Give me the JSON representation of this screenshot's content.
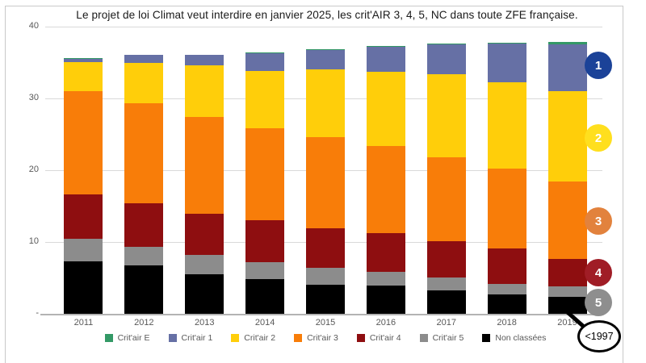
{
  "title": "Le projet de loi Climat veut interdire en janvier 2025, les crit'AIR 3, 4, 5, NC dans toute ZFE française.",
  "chart_data": {
    "type": "bar",
    "subtype": "stacked",
    "title": "Le projet de loi Climat veut interdire en janvier 2025, les crit'AIR 3, 4, 5, NC dans toute ZFE française.",
    "categories": [
      "2011",
      "2012",
      "2013",
      "2014",
      "2015",
      "2016",
      "2017",
      "2018",
      "2019"
    ],
    "series": [
      {
        "name": "Crit'air E",
        "color": "#339966",
        "values": [
          0.05,
          0.05,
          0.05,
          0.1,
          0.1,
          0.1,
          0.1,
          0.15,
          0.3
        ]
      },
      {
        "name": "Crit'air 1",
        "color": "#6670A5",
        "values": [
          0.5,
          1.1,
          1.5,
          2.4,
          2.7,
          3.4,
          4.2,
          5.4,
          6.5
        ]
      },
      {
        "name": "Crit'air 2",
        "color": "#FFCE0A",
        "values": [
          4.0,
          5.6,
          7.1,
          8.0,
          9.5,
          10.4,
          11.6,
          12.0,
          12.6
        ]
      },
      {
        "name": "Crit'air 3",
        "color": "#F87D09",
        "values": [
          14.4,
          14.0,
          13.5,
          12.8,
          12.7,
          12.2,
          11.7,
          11.2,
          10.8
        ]
      },
      {
        "name": "Crit'air 4",
        "color": "#8E0E10",
        "values": [
          6.2,
          6.1,
          5.8,
          5.9,
          5.5,
          5.3,
          5.0,
          4.9,
          3.9
        ]
      },
      {
        "name": "Crit'air 5",
        "color": "#8C8C8C",
        "values": [
          3.2,
          2.6,
          2.7,
          2.4,
          2.3,
          2.0,
          1.8,
          1.5,
          1.4
        ]
      },
      {
        "name": "Non classées",
        "color": "#000000",
        "values": [
          7.3,
          6.7,
          5.5,
          4.8,
          4.1,
          3.9,
          3.3,
          2.7,
          2.4
        ]
      }
    ],
    "stack_order_bottom_to_top": [
      "Non classées",
      "Crit'air 5",
      "Crit'air 4",
      "Crit'air 3",
      "Crit'air 2",
      "Crit'air 1",
      "Crit'air E"
    ],
    "ylim": [
      0,
      40
    ],
    "yticks": [
      {
        "value": 0,
        "label": "-"
      },
      {
        "value": 10,
        "label": "10"
      },
      {
        "value": 20,
        "label": "20"
      },
      {
        "value": 30,
        "label": "30"
      },
      {
        "value": 40,
        "label": "40"
      }
    ],
    "grid": true,
    "legend_position": "bottom"
  },
  "badges": [
    {
      "label": "1",
      "color": "#1B4298"
    },
    {
      "label": "2",
      "color": "#FFDF1E"
    },
    {
      "label": "3",
      "color": "#E2823D"
    },
    {
      "label": "4",
      "color": "#A01D26"
    },
    {
      "label": "5",
      "color": "#8E8E8E"
    }
  ],
  "annotation": {
    "text": "<1997"
  }
}
